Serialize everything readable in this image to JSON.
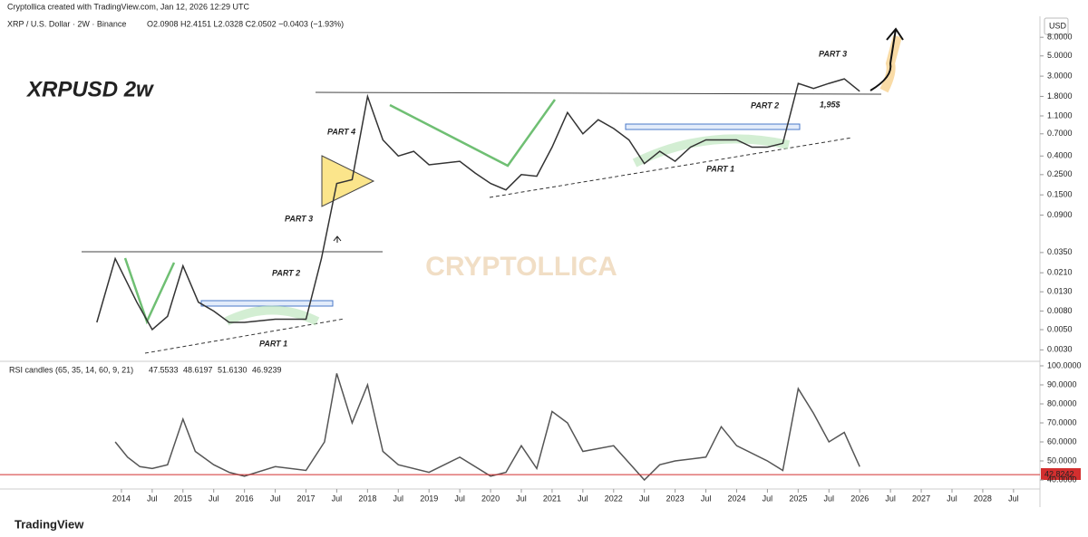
{
  "header": {
    "author_line": "Cryptollica created with TradingView.com, Jan 12, 2026 12:29 UTC",
    "symbol_line": "XRP / U.S. Dollar · 2W · Binance",
    "ohlc_line": "O2.0908 H2.4151 L2.0328 C2.0502 −0.0403 (−1.93%)",
    "currency": "USD"
  },
  "footer": {
    "brand": "TradingView"
  },
  "chart_data": [
    {
      "type": "line",
      "title": "XRPUSD 2w",
      "watermark": "CRYPTOLLICA",
      "log_scale": true,
      "color": "#333333",
      "annotations": [
        "PART 1",
        "PART 2",
        "PART 3",
        "PART 4",
        "PART 1",
        "PART 2",
        "PART 3",
        "1,95$"
      ],
      "x": [
        2013.6,
        2013.9,
        2014.25,
        2014.5,
        2014.75,
        2015.0,
        2015.25,
        2015.5,
        2015.75,
        2016.0,
        2016.5,
        2017.0,
        2017.25,
        2017.5,
        2017.75,
        2018.0,
        2018.25,
        2018.5,
        2018.75,
        2019.0,
        2019.5,
        2019.75,
        2020.0,
        2020.25,
        2020.5,
        2020.75,
        2021.0,
        2021.25,
        2021.5,
        2021.75,
        2022.0,
        2022.25,
        2022.5,
        2022.75,
        2023.0,
        2023.25,
        2023.5,
        2023.75,
        2024.0,
        2024.25,
        2024.5,
        2024.75,
        2025.0,
        2025.25,
        2025.5,
        2025.75,
        2026.0
      ],
      "values": [
        0.006,
        0.03,
        0.01,
        0.005,
        0.007,
        0.025,
        0.01,
        0.008,
        0.006,
        0.006,
        0.0065,
        0.0065,
        0.03,
        0.2,
        0.22,
        1.8,
        0.6,
        0.4,
        0.45,
        0.32,
        0.35,
        0.26,
        0.2,
        0.17,
        0.25,
        0.24,
        0.5,
        1.2,
        0.7,
        1.0,
        0.8,
        0.6,
        0.33,
        0.45,
        0.35,
        0.5,
        0.6,
        0.6,
        0.6,
        0.5,
        0.5,
        0.55,
        2.5,
        2.2,
        2.5,
        2.8,
        2.05
      ],
      "ylim": [
        0.0023,
        12.4
      ],
      "yticks": [
        {
          "value": 8,
          "label": "8.0000"
        },
        {
          "value": 5,
          "label": "5.0000"
        },
        {
          "value": 3,
          "label": "3.0000"
        },
        {
          "value": 1.8,
          "label": "1.8000"
        },
        {
          "value": 1.1,
          "label": "1.1000"
        },
        {
          "value": 0.7,
          "label": "0.7000"
        },
        {
          "value": 0.4,
          "label": "0.4000"
        },
        {
          "value": 0.25,
          "label": "0.2500"
        },
        {
          "value": 0.15,
          "label": "0.1500"
        },
        {
          "value": 0.09,
          "label": "0.0900"
        },
        {
          "value": 0.035,
          "label": "0.0350"
        },
        {
          "value": 0.021,
          "label": "0.0210"
        },
        {
          "value": 0.013,
          "label": "0.0130"
        },
        {
          "value": 0.008,
          "label": "0.0080"
        },
        {
          "value": 0.005,
          "label": "0.0050"
        },
        {
          "value": 0.003,
          "label": "0.0030"
        }
      ],
      "xlim": [
        2012.1,
        2028.9
      ]
    },
    {
      "type": "line",
      "title": "RSI candles (65, 35, 14, 60, 9, 21)",
      "legend_values": [
        "47.5533",
        "48.6197",
        "51.6130",
        "46.9239"
      ],
      "color": "#555555",
      "last_value": 42.8242,
      "last_color": "#d32f2f",
      "x": [
        2013.9,
        2014.1,
        2014.3,
        2014.5,
        2014.75,
        2015.0,
        2015.2,
        2015.5,
        2015.75,
        2016.0,
        2016.5,
        2017.0,
        2017.3,
        2017.5,
        2017.75,
        2018.0,
        2018.25,
        2018.5,
        2019.0,
        2019.5,
        2020.0,
        2020.25,
        2020.5,
        2020.75,
        2021.0,
        2021.25,
        2021.5,
        2022.0,
        2022.5,
        2022.75,
        2023.0,
        2023.5,
        2023.75,
        2024.0,
        2024.5,
        2024.75,
        2025.0,
        2025.25,
        2025.5,
        2025.75,
        2026.0
      ],
      "values": [
        60,
        52,
        47,
        46,
        48,
        72,
        55,
        48,
        44,
        42,
        47,
        45,
        60,
        96,
        70,
        90,
        55,
        48,
        44,
        52,
        42,
        44,
        58,
        46,
        76,
        70,
        55,
        58,
        40,
        48,
        50,
        52,
        68,
        58,
        50,
        45,
        88,
        75,
        60,
        65,
        47
      ],
      "ylim": [
        36.2,
        101.9
      ],
      "yticks": [
        {
          "value": 100,
          "label": "100.0000"
        },
        {
          "value": 90,
          "label": "90.0000"
        },
        {
          "value": 80,
          "label": "80.0000"
        },
        {
          "value": 70,
          "label": "70.0000"
        },
        {
          "value": 60,
          "label": "60.0000"
        },
        {
          "value": 50,
          "label": "50.0000"
        },
        {
          "value": 40,
          "label": "40.0000"
        }
      ],
      "xlim": [
        2012.1,
        2028.9
      ],
      "xticks": [
        2014,
        {
          "value": 2014.5,
          "label": "Jul"
        },
        2015,
        {
          "value": 2015.5,
          "label": "Jul"
        },
        2016,
        {
          "value": 2016.5,
          "label": "Jul"
        },
        2017,
        {
          "value": 2017.5,
          "label": "Jul"
        },
        2018,
        {
          "value": 2018.5,
          "label": "Jul"
        },
        2019,
        {
          "value": 2019.5,
          "label": "Jul"
        },
        2020,
        {
          "value": 2020.5,
          "label": "Jul"
        },
        2021,
        {
          "value": 2021.5,
          "label": "Jul"
        },
        2022,
        {
          "value": 2022.5,
          "label": "Jul"
        },
        2023,
        {
          "value": 2023.5,
          "label": "Jul"
        },
        2024,
        {
          "value": 2024.5,
          "label": "Jul"
        },
        2025,
        {
          "value": 2025.5,
          "label": "Jul"
        },
        2026,
        {
          "value": 2026.5,
          "label": "Jul"
        },
        2027,
        {
          "value": 2027.5,
          "label": "Jul"
        },
        2028,
        {
          "value": 2028.5,
          "label": "Jul"
        }
      ]
    }
  ]
}
